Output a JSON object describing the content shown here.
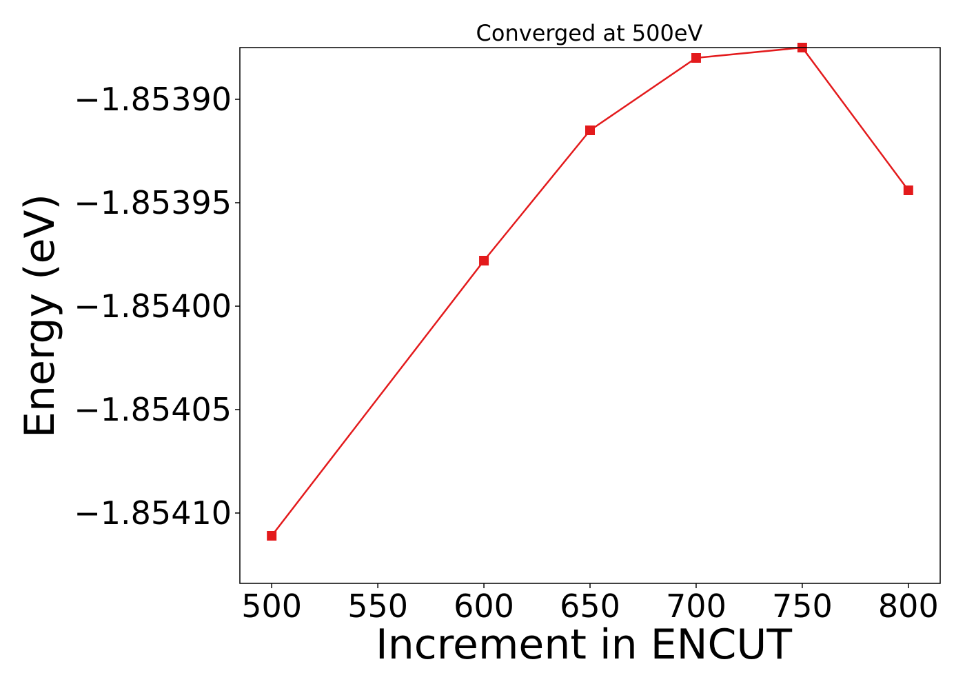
{
  "chart_data": {
    "type": "line",
    "title": "Converged at 500eV",
    "xlabel": "Increment in ENCUT",
    "ylabel": "Energy (eV)",
    "x": [
      500,
      600,
      650,
      700,
      750,
      800
    ],
    "series": [
      {
        "values": [
          -1.854111,
          -1.853978,
          -1.853915,
          -1.85388,
          -1.853875,
          -1.853944
        ],
        "color": "#e31a1c",
        "marker": "square"
      }
    ],
    "xlim": [
      485,
      815
    ],
    "ylim": [
      -1.854134,
      -1.853875
    ],
    "xticks": [
      500,
      550,
      600,
      650,
      700,
      750,
      800
    ],
    "xtick_labels": [
      "500",
      "550",
      "600",
      "650",
      "700",
      "750",
      "800"
    ],
    "yticks": [
      -1.8539,
      -1.85395,
      -1.854,
      -1.85405,
      -1.8541
    ],
    "ytick_labels": [
      "−1.85390",
      "−1.85395",
      "−1.85400",
      "−1.85405",
      "−1.85410"
    ],
    "grid": false,
    "legend": false
  }
}
